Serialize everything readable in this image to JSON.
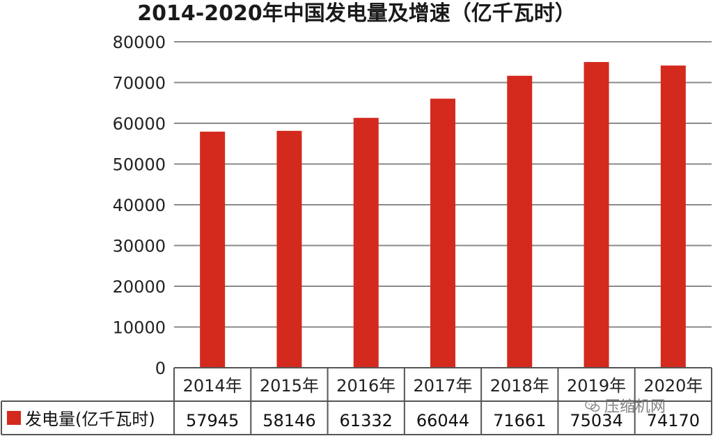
{
  "chart_data": {
    "type": "bar",
    "title": "2014-2020年中国发电量及增速（亿千瓦时）",
    "categories": [
      "2014年",
      "2015年",
      "2016年",
      "2017年",
      "2018年",
      "2019年",
      "2020年"
    ],
    "series": [
      {
        "name": "发电量(亿千瓦时)",
        "values": [
          57945,
          58146,
          61332,
          66044,
          71661,
          75034,
          74170
        ]
      }
    ],
    "ylim": [
      0,
      80000
    ],
    "yticks": [
      "0",
      "10000",
      "20000",
      "30000",
      "40000",
      "50000",
      "60000",
      "70000",
      "80000"
    ],
    "grid": true,
    "data_table": true,
    "colors": {
      "bar": "#d42a1e",
      "grid": "#8a8a8a",
      "table_border": "#555555"
    }
  },
  "watermark": {
    "text": "压缩机网",
    "icon": "wechat-icon"
  }
}
